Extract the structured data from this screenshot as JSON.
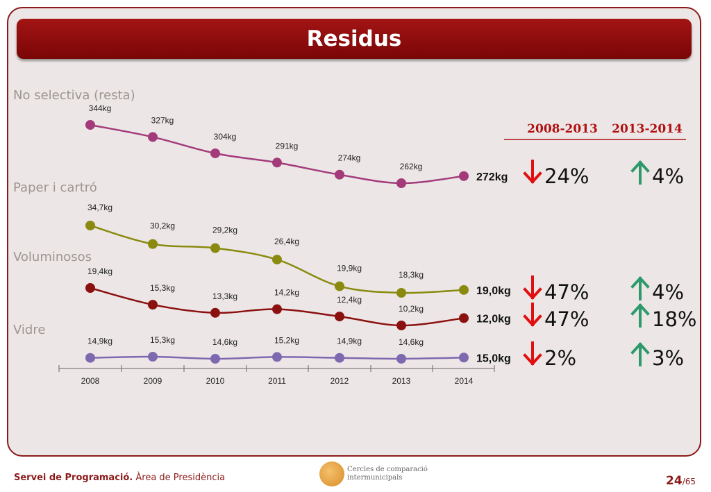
{
  "title": "Residus",
  "footer": {
    "org": "Servei de Programació.",
    "area": " Àrea de Presidència",
    "logo_line1": "Cercles de comparació",
    "logo_line2": "intermunicipals",
    "page": "24",
    "total": "/65"
  },
  "chart_data": {
    "type": "line",
    "x": [
      "2008",
      "2009",
      "2010",
      "2011",
      "2012",
      "2013",
      "2014"
    ],
    "periods": [
      "2008-2013",
      "2013-2014"
    ],
    "series": [
      {
        "name": "No selectiva (resta)",
        "color": "#a33b7b",
        "values": [
          344,
          327,
          304,
          291,
          274,
          262,
          272
        ],
        "labels": [
          "344kg",
          "327kg",
          "304kg",
          "291kg",
          "274kg",
          "262kg",
          "272kg"
        ],
        "change_2008_2013": {
          "direction": "down",
          "text": "24%"
        },
        "change_2013_2014": {
          "direction": "up",
          "text": "4%"
        }
      },
      {
        "name": "Paper i cartró",
        "color": "#8a8a10",
        "values": [
          34.7,
          30.2,
          29.2,
          26.4,
          19.9,
          18.3,
          19.0
        ],
        "labels": [
          "34,7kg",
          "30,2kg",
          "29,2kg",
          "26,4kg",
          "19,9kg",
          "18,3kg",
          "19,0kg"
        ],
        "change_2008_2013": {
          "direction": "down",
          "text": "47%"
        },
        "change_2013_2014": {
          "direction": "up",
          "text": "4%"
        }
      },
      {
        "name": "Voluminosos",
        "color": "#8b1010",
        "values": [
          19.4,
          15.3,
          13.3,
          14.2,
          12.4,
          10.2,
          12.0
        ],
        "labels": [
          "19,4kg",
          "15,3kg",
          "13,3kg",
          "14,2kg",
          "12,4kg",
          "10,2kg",
          "12,0kg"
        ],
        "change_2008_2013": {
          "direction": "down",
          "text": "47%"
        },
        "change_2013_2014": {
          "direction": "up",
          "text": "18%"
        }
      },
      {
        "name": "Vidre",
        "color": "#7e68b0",
        "values": [
          14.9,
          15.3,
          14.6,
          15.2,
          14.9,
          14.6,
          15.0
        ],
        "labels": [
          "14,9kg",
          "15,3kg",
          "14,6kg",
          "15,2kg",
          "14,9kg",
          "14,6kg",
          "15,0kg"
        ],
        "change_2008_2013": {
          "direction": "down",
          "text": "2%"
        },
        "change_2013_2014": {
          "direction": "up",
          "text": "3%"
        }
      }
    ],
    "colors": {
      "down": "#e01010",
      "up": "#2e9a6a"
    }
  }
}
